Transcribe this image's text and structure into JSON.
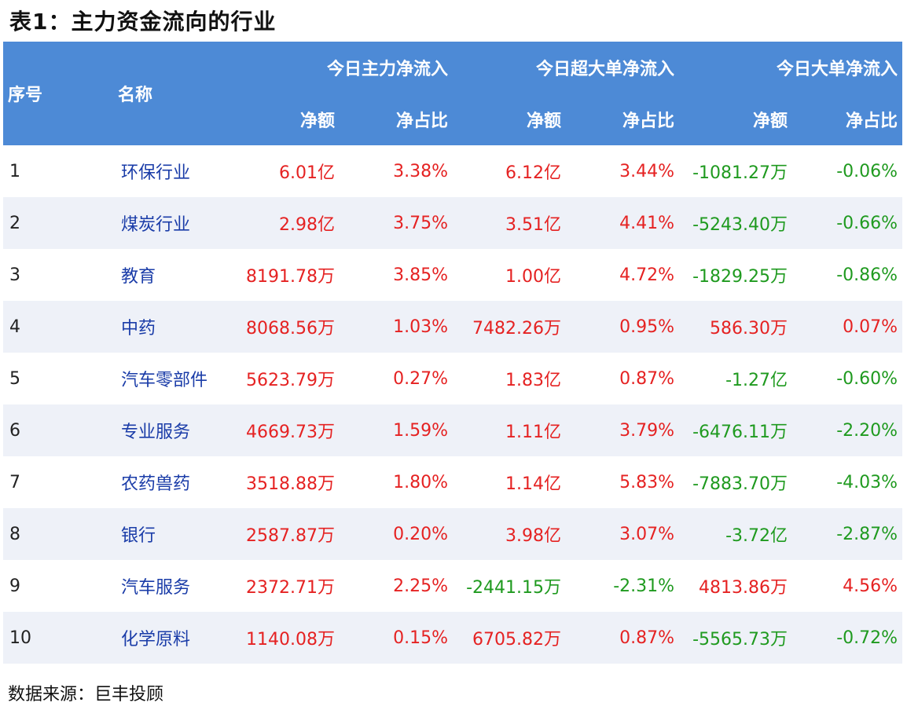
{
  "title": "表1：主力资金流向的行业",
  "header": {
    "seq": "序号",
    "name": "名称",
    "group_main": "今日主力净流入",
    "group_super": "今日超大单净流入",
    "group_large": "今日大单净流入",
    "amount": "净额",
    "ratio": "净占比"
  },
  "rows": [
    {
      "seq": "1",
      "name": "环保行业",
      "main_amt": "6.01亿",
      "main_pct": "3.38%",
      "super_amt": "6.12亿",
      "super_pct": "3.44%",
      "large_amt": "-1081.27万",
      "large_pct": "-0.06%"
    },
    {
      "seq": "2",
      "name": "煤炭行业",
      "main_amt": "2.98亿",
      "main_pct": "3.75%",
      "super_amt": "3.51亿",
      "super_pct": "4.41%",
      "large_amt": "-5243.40万",
      "large_pct": "-0.66%"
    },
    {
      "seq": "3",
      "name": "教育",
      "main_amt": "8191.78万",
      "main_pct": "3.85%",
      "super_amt": "1.00亿",
      "super_pct": "4.72%",
      "large_amt": "-1829.25万",
      "large_pct": "-0.86%"
    },
    {
      "seq": "4",
      "name": "中药",
      "main_amt": "8068.56万",
      "main_pct": "1.03%",
      "super_amt": "7482.26万",
      "super_pct": "0.95%",
      "large_amt": "586.30万",
      "large_pct": "0.07%"
    },
    {
      "seq": "5",
      "name": "汽车零部件",
      "main_amt": "5623.79万",
      "main_pct": "0.27%",
      "super_amt": "1.83亿",
      "super_pct": "0.87%",
      "large_amt": "-1.27亿",
      "large_pct": "-0.60%"
    },
    {
      "seq": "6",
      "name": "专业服务",
      "main_amt": "4669.73万",
      "main_pct": "1.59%",
      "super_amt": "1.11亿",
      "super_pct": "3.79%",
      "large_amt": "-6476.11万",
      "large_pct": "-2.20%"
    },
    {
      "seq": "7",
      "name": "农药兽药",
      "main_amt": "3518.88万",
      "main_pct": "1.80%",
      "super_amt": "1.14亿",
      "super_pct": "5.83%",
      "large_amt": "-7883.70万",
      "large_pct": "-4.03%"
    },
    {
      "seq": "8",
      "name": "银行",
      "main_amt": "2587.87万",
      "main_pct": "0.20%",
      "super_amt": "3.98亿",
      "super_pct": "3.07%",
      "large_amt": "-3.72亿",
      "large_pct": "-2.87%"
    },
    {
      "seq": "9",
      "name": "汽车服务",
      "main_amt": "2372.71万",
      "main_pct": "2.25%",
      "super_amt": "-2441.15万",
      "super_pct": "-2.31%",
      "large_amt": "4813.86万",
      "large_pct": "4.56%"
    },
    {
      "seq": "10",
      "name": "化学原料",
      "main_amt": "1140.08万",
      "main_pct": "0.15%",
      "super_amt": "6705.82万",
      "super_pct": "0.87%",
      "large_amt": "-5565.73万",
      "large_pct": "-0.72%"
    }
  ],
  "source": "数据来源：巨丰投顾",
  "colors": {
    "header_bg": "#4d8ad6",
    "header_text": "#ffffff",
    "positive": "#e52222",
    "negative": "#1f9a1f",
    "name_text": "#1a3ca8",
    "stripe": "#eef1f8"
  }
}
